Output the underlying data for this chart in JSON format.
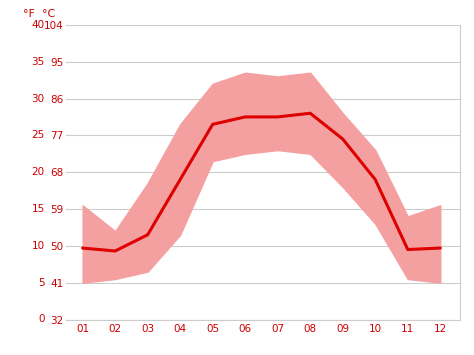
{
  "months": [
    1,
    2,
    3,
    4,
    5,
    6,
    7,
    8,
    9,
    10,
    11,
    12
  ],
  "mean_temp_c": [
    9.7,
    9.3,
    11.5,
    19.0,
    26.5,
    27.5,
    27.5,
    28.0,
    24.5,
    19.0,
    9.5,
    9.7
  ],
  "temp_max_c": [
    15.5,
    12.0,
    18.5,
    26.5,
    32.0,
    33.5,
    33.0,
    33.5,
    28.0,
    23.0,
    14.0,
    15.5
  ],
  "temp_min_c": [
    5.0,
    5.5,
    6.5,
    11.5,
    21.5,
    22.5,
    23.0,
    22.5,
    18.0,
    13.0,
    5.5,
    5.0
  ],
  "line_color": "#dd0000",
  "band_color": "#f5a0a0",
  "grid_color": "#cccccc",
  "axis_label_color": "#cc0000",
  "background_color": "#ffffff",
  "ylim_c": [
    0,
    40
  ],
  "xlim": [
    0.5,
    12.6
  ],
  "xtick_labels": [
    "01",
    "02",
    "03",
    "04",
    "05",
    "06",
    "07",
    "08",
    "09",
    "10",
    "11",
    "12"
  ],
  "yticks_c": [
    0,
    5,
    10,
    15,
    20,
    25,
    30,
    35,
    40
  ],
  "yticks_f": [
    32,
    41,
    50,
    59,
    68,
    77,
    86,
    95,
    104
  ],
  "ylabel_f": "°F",
  "ylabel_c": "°C",
  "line_width": 2.2,
  "figsize": [
    4.74,
    3.55
  ],
  "dpi": 100
}
